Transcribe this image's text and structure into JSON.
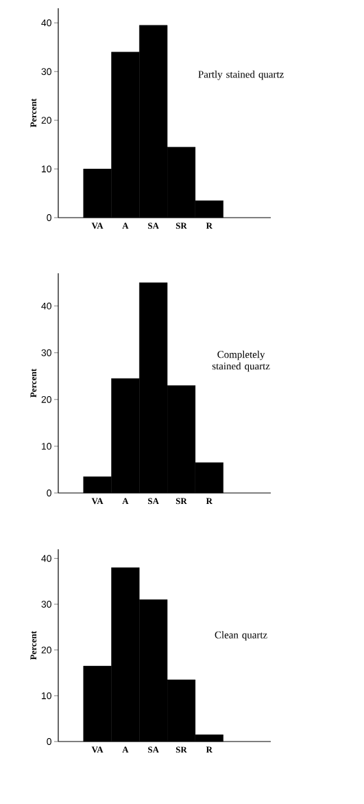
{
  "chart_data": [
    {
      "type": "bar",
      "title": "Partly stained quartz",
      "ylabel": "Percent",
      "categories": [
        "VA",
        "A",
        "SA",
        "SR",
        "R"
      ],
      "values": [
        10,
        34,
        39.5,
        14.5,
        3.5
      ],
      "color": "#000000",
      "ylim": [
        0,
        43
      ],
      "yticks": [
        0,
        10,
        20,
        30,
        40
      ]
    },
    {
      "type": "bar",
      "title": "Completely stained quartz",
      "ylabel": "Percent",
      "categories": [
        "VA",
        "A",
        "SA",
        "SR",
        "R"
      ],
      "values": [
        3.5,
        24.5,
        45,
        23,
        6.5
      ],
      "color": "#000000",
      "ylim": [
        0,
        47
      ],
      "yticks": [
        0,
        10,
        20,
        30,
        40
      ]
    },
    {
      "type": "bar",
      "title": "Clean quartz",
      "ylabel": "Percent",
      "categories": [
        "VA",
        "A",
        "SA",
        "SR",
        "R"
      ],
      "values": [
        16.5,
        38,
        31,
        13.5,
        1.5
      ],
      "color": "#000000",
      "ylim": [
        0,
        42
      ],
      "yticks": [
        0,
        10,
        20,
        30,
        40
      ]
    }
  ]
}
